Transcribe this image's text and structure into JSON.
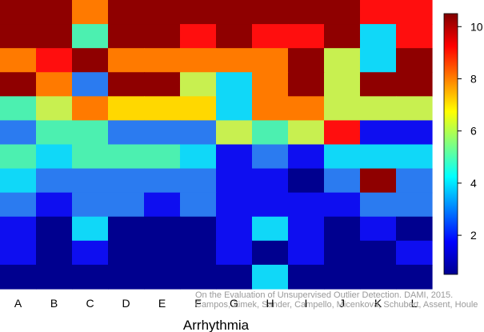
{
  "chart_data": {
    "type": "heatmap",
    "xlabel": "Arrhythmia",
    "columns": [
      "A",
      "B",
      "C",
      "D",
      "E",
      "F",
      "G",
      "H",
      "I",
      "J",
      "K",
      "L"
    ],
    "values": [
      [
        10,
        10,
        8,
        10,
        10,
        10,
        10,
        10,
        10,
        10,
        9,
        9
      ],
      [
        10,
        10,
        5,
        10,
        10,
        9,
        10,
        9,
        9,
        10,
        4,
        9
      ],
      [
        8,
        9,
        10,
        8,
        8,
        8,
        8,
        8,
        10,
        6,
        4,
        10
      ],
      [
        10,
        8,
        3,
        10,
        10,
        6,
        4,
        8,
        10,
        6,
        10,
        10
      ],
      [
        5,
        6,
        8,
        7,
        7,
        7,
        4,
        8,
        8,
        6,
        6,
        6
      ],
      [
        3,
        5,
        5,
        3,
        3,
        3,
        6,
        5,
        6,
        9,
        2,
        2
      ],
      [
        5,
        4,
        5,
        5,
        5,
        4,
        2,
        3,
        2,
        4,
        4,
        4
      ],
      [
        4,
        3,
        3,
        3,
        3,
        3,
        2,
        2,
        1,
        3,
        10,
        3
      ],
      [
        3,
        2,
        3,
        3,
        2,
        3,
        2,
        2,
        2,
        2,
        3,
        3
      ],
      [
        2,
        1,
        4,
        1,
        1,
        1,
        2,
        4,
        2,
        1,
        2,
        1
      ],
      [
        2,
        1,
        2,
        1,
        1,
        1,
        2,
        1,
        2,
        1,
        1,
        2
      ],
      [
        1,
        1,
        1,
        1,
        1,
        1,
        1,
        4,
        1,
        1,
        1,
        1
      ]
    ],
    "colorbar": {
      "ticks": [
        2,
        4,
        6,
        8,
        10
      ],
      "min": 1,
      "max": 10
    },
    "colors": {
      "1": "#00008f",
      "2": "#0e0ef0",
      "3": "#2b7bf0",
      "4": "#10d8f8",
      "5": "#4cf0b0",
      "6": "#c8f050",
      "7": "#ffd800",
      "8": "#ff7a00",
      "9": "#ff0e0e",
      "10": "#8f0000"
    },
    "colorbar_colors": [
      "#00008f",
      "#0000ff",
      "#0080ff",
      "#00ffff",
      "#80ff80",
      "#ffff00",
      "#ff8000",
      "#ff0000",
      "#800000"
    ]
  },
  "watermark": {
    "line1": "On the Evaluation of Unsupervised Outlier Detection. DAMI, 2015.",
    "line2": "Campos, Zimek, Sander, Campello, Micenková, Schubert, Assent, Houle"
  }
}
